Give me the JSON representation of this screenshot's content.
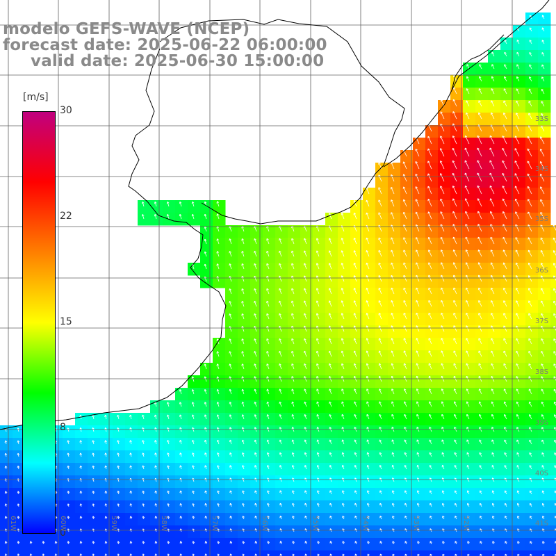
{
  "title": {
    "line1": "modelo GEFS-WAVE (NCEP)",
    "line2": "forecast date: 2025-06-22 06:00:00",
    "line3": "valid date: 2025-06-30 15:00:00"
  },
  "colorbar": {
    "unit": "[m/s]",
    "ticks": [
      "30",
      "22",
      "15",
      "8",
      "0"
    ],
    "tick_values": [
      30,
      22,
      15,
      8,
      0
    ],
    "min": 0,
    "max": 30,
    "stops": [
      "#0000ff",
      "#00ffff",
      "#00ff00",
      "#ffff00",
      "#ff7f00",
      "#ff0000",
      "#c00080"
    ]
  },
  "lat_labels": [
    "33S",
    "34S",
    "35S",
    "36S",
    "37S",
    "38S",
    "39S",
    "40S",
    "41S"
  ],
  "lon_labels": [
    "61W",
    "60W",
    "59W",
    "58W",
    "57W",
    "56W",
    "55W",
    "54W",
    "53W",
    "52W"
  ],
  "colors": {
    "land": "#ffffff",
    "grid": "#606060",
    "coast": "#000000",
    "arrow": "#ffffff",
    "label": "#8a8a8a"
  }
}
